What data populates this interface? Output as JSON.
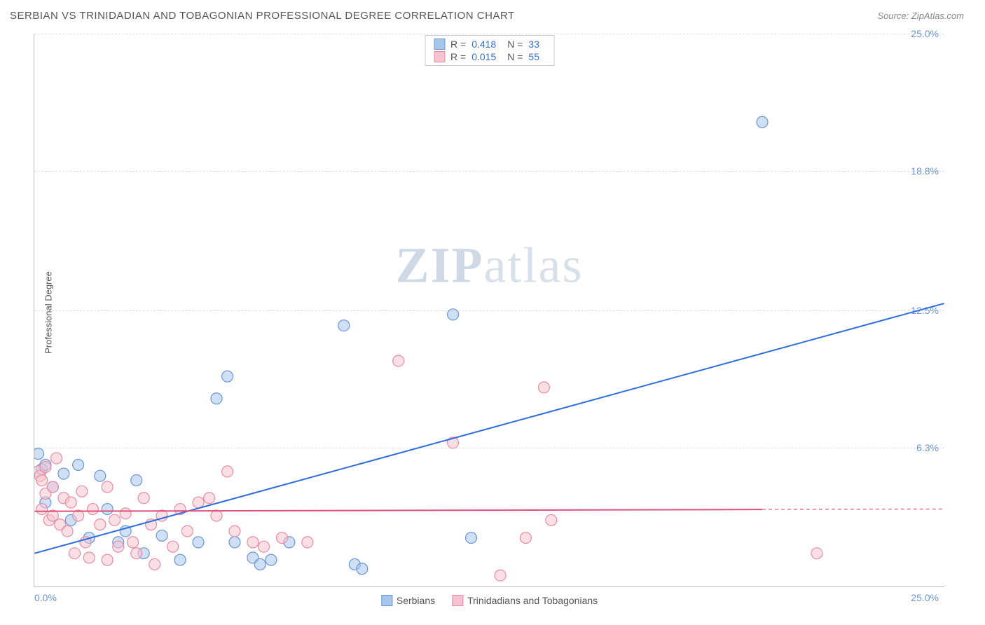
{
  "header": {
    "title": "SERBIAN VS TRINIDADIAN AND TOBAGONIAN PROFESSIONAL DEGREE CORRELATION CHART",
    "source_prefix": "Source: ",
    "source_name": "ZipAtlas.com"
  },
  "chart": {
    "type": "scatter",
    "ylabel": "Professional Degree",
    "xlim": [
      0,
      25
    ],
    "ylim": [
      0,
      25
    ],
    "xtick_min": "0.0%",
    "xtick_max": "25.0%",
    "yticks": [
      {
        "value": 6.3,
        "label": "6.3%"
      },
      {
        "value": 12.5,
        "label": "12.5%"
      },
      {
        "value": 18.8,
        "label": "18.8%"
      },
      {
        "value": 25.0,
        "label": "25.0%"
      }
    ],
    "gridline_color": "#ddd",
    "axis_color": "#bbb",
    "background_color": "#ffffff",
    "marker_radius": 8,
    "marker_opacity": 0.55,
    "watermark": "ZIPatlas",
    "series": [
      {
        "name": "Serbians",
        "color_fill": "#a7c6ed",
        "color_stroke": "#6b95d4",
        "R": "0.418",
        "N": "33",
        "trend": {
          "x1": 0,
          "y1": 1.5,
          "x2": 25,
          "y2": 12.8,
          "solid_until_x": 25,
          "color": "#2d6cdf",
          "width": 2
        },
        "points": [
          [
            0.1,
            6.0
          ],
          [
            0.2,
            5.3
          ],
          [
            0.3,
            5.5
          ],
          [
            0.3,
            3.8
          ],
          [
            0.5,
            4.5
          ],
          [
            0.8,
            5.1
          ],
          [
            1.0,
            3.0
          ],
          [
            1.2,
            5.5
          ],
          [
            1.5,
            2.2
          ],
          [
            1.8,
            5.0
          ],
          [
            2.0,
            3.5
          ],
          [
            2.3,
            2.0
          ],
          [
            2.5,
            2.5
          ],
          [
            2.8,
            4.8
          ],
          [
            3.0,
            1.5
          ],
          [
            3.5,
            2.3
          ],
          [
            4.0,
            1.2
          ],
          [
            4.5,
            2.0
          ],
          [
            5.0,
            8.5
          ],
          [
            5.3,
            9.5
          ],
          [
            5.5,
            2.0
          ],
          [
            6.0,
            1.3
          ],
          [
            6.2,
            1.0
          ],
          [
            6.5,
            1.2
          ],
          [
            7.0,
            2.0
          ],
          [
            8.5,
            11.8
          ],
          [
            8.8,
            1.0
          ],
          [
            9.0,
            0.8
          ],
          [
            11.5,
            12.3
          ],
          [
            12.0,
            2.2
          ],
          [
            20.0,
            21.0
          ]
        ]
      },
      {
        "name": "Trinidadians and Tobagonians",
        "color_fill": "#f5c4d0",
        "color_stroke": "#e88ba5",
        "R": "0.015",
        "N": "55",
        "trend": {
          "x1": 0,
          "y1": 3.4,
          "x2": 25,
          "y2": 3.5,
          "solid_until_x": 20,
          "color": "#e04f7a",
          "width": 2
        },
        "points": [
          [
            0.1,
            5.2
          ],
          [
            0.15,
            5.0
          ],
          [
            0.2,
            4.8
          ],
          [
            0.2,
            3.5
          ],
          [
            0.3,
            4.2
          ],
          [
            0.3,
            5.4
          ],
          [
            0.4,
            3.0
          ],
          [
            0.5,
            4.5
          ],
          [
            0.5,
            3.2
          ],
          [
            0.6,
            5.8
          ],
          [
            0.7,
            2.8
          ],
          [
            0.8,
            4.0
          ],
          [
            0.9,
            2.5
          ],
          [
            1.0,
            3.8
          ],
          [
            1.1,
            1.5
          ],
          [
            1.2,
            3.2
          ],
          [
            1.3,
            4.3
          ],
          [
            1.4,
            2.0
          ],
          [
            1.5,
            1.3
          ],
          [
            1.6,
            3.5
          ],
          [
            1.8,
            2.8
          ],
          [
            2.0,
            1.2
          ],
          [
            2.0,
            4.5
          ],
          [
            2.2,
            3.0
          ],
          [
            2.3,
            1.8
          ],
          [
            2.5,
            3.3
          ],
          [
            2.7,
            2.0
          ],
          [
            2.8,
            1.5
          ],
          [
            3.0,
            4.0
          ],
          [
            3.2,
            2.8
          ],
          [
            3.3,
            1.0
          ],
          [
            3.5,
            3.2
          ],
          [
            3.8,
            1.8
          ],
          [
            4.0,
            3.5
          ],
          [
            4.2,
            2.5
          ],
          [
            4.5,
            3.8
          ],
          [
            4.8,
            4.0
          ],
          [
            5.0,
            3.2
          ],
          [
            5.3,
            5.2
          ],
          [
            5.5,
            2.5
          ],
          [
            6.0,
            2.0
          ],
          [
            6.3,
            1.8
          ],
          [
            6.8,
            2.2
          ],
          [
            7.5,
            2.0
          ],
          [
            10.0,
            10.2
          ],
          [
            11.5,
            6.5
          ],
          [
            12.8,
            0.5
          ],
          [
            13.5,
            2.2
          ],
          [
            14.0,
            9.0
          ],
          [
            14.2,
            3.0
          ],
          [
            21.5,
            1.5
          ]
        ]
      }
    ],
    "legend_top": {
      "border_color": "#ccc",
      "label_R": "R =",
      "label_N": "N ="
    },
    "legend_bottom_labels": [
      "Serbians",
      "Trinidadians and Tobagonians"
    ]
  }
}
